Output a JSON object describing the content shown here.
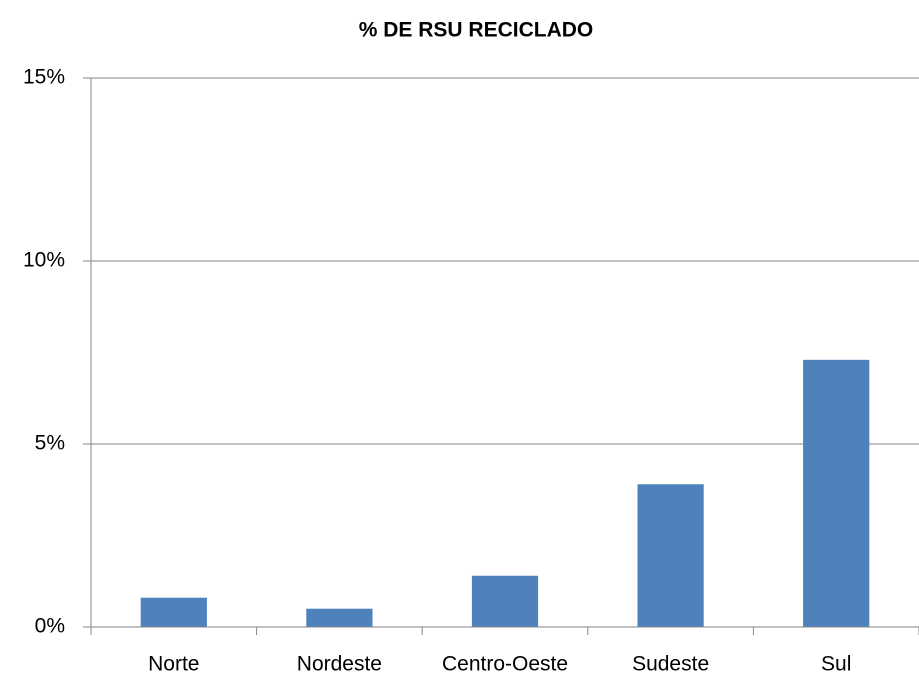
{
  "chart_data": {
    "type": "bar",
    "title": "% DE RSU RECICLADO",
    "categories": [
      "Norte",
      "Nordeste",
      "Centro-Oeste",
      "Sudeste",
      "Sul"
    ],
    "values": [
      0.8,
      0.5,
      1.4,
      3.9,
      7.3
    ],
    "color": "#4f81bd",
    "ylim": [
      0,
      15
    ],
    "yticks": [
      {
        "value": 0,
        "label": "0%"
      },
      {
        "value": 5,
        "label": "5%"
      },
      {
        "value": 10,
        "label": "10%"
      },
      {
        "value": 15,
        "label": "15%"
      }
    ],
    "grid": true
  }
}
